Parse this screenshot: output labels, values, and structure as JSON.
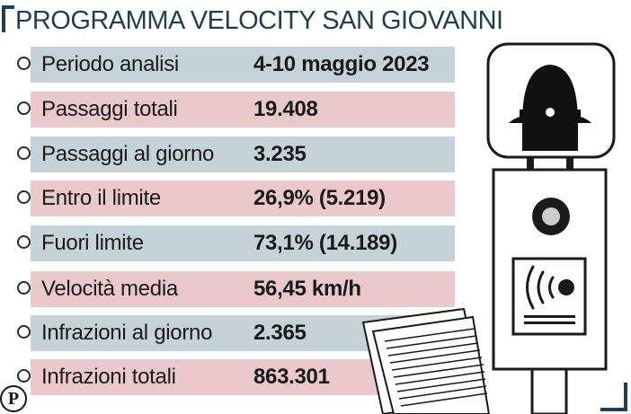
{
  "title": "PROGRAMMA VELOCITY SAN GIOVANNI",
  "rows": [
    {
      "label": "Periodo analisi",
      "value": "4-10 maggio 2023"
    },
    {
      "label": "Passaggi totali",
      "value": "19.408"
    },
    {
      "label": "Passaggi al giorno",
      "value": "3.235"
    },
    {
      "label": "Entro il limite",
      "value": "26,9% (5.219)"
    },
    {
      "label": "Fuori limite",
      "value": "73,1% (14.189)"
    },
    {
      "label": "Velocità media",
      "value": "56,45 km/h"
    },
    {
      "label": "Infrazioni al giorno",
      "value": "2.365"
    },
    {
      "label": "Infrazioni totali",
      "value": "863.301"
    }
  ],
  "logo": {
    "letter": "P"
  },
  "colors": {
    "title": "#1f3f50",
    "row_blue": "#c5d3d8",
    "row_pink": "#ebc8cc",
    "text": "#1a1a1a"
  },
  "icons": {
    "illustration": "speed-camera-illustration",
    "documents": "documents-icon",
    "logo": "publisher-logo-icon"
  }
}
